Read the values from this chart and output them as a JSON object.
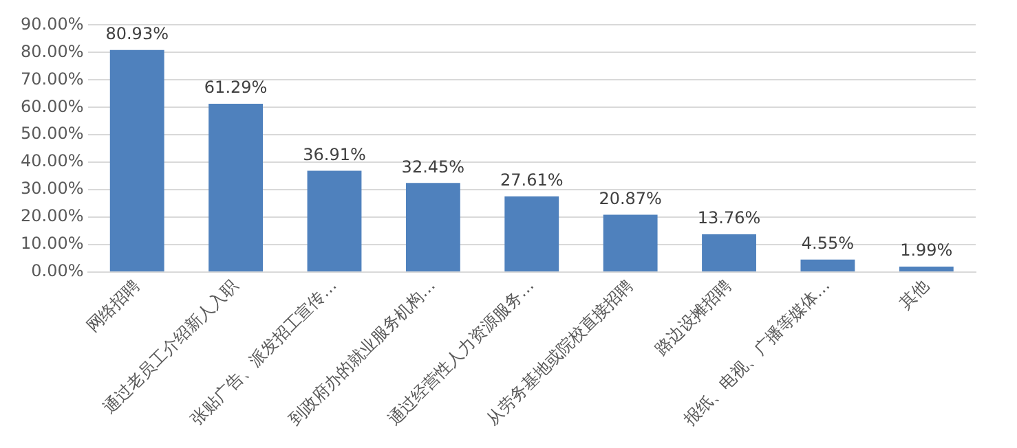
{
  "chart_data": {
    "type": "bar",
    "categories": [
      "网络招聘",
      "通过老员工介绍新人入职",
      "张贴广告、派发招工宣传…",
      "到政府办的就业服务机构…",
      "通过经营性人力资源服务…",
      "从劳务基地或院校直接招聘",
      "路边设摊招聘",
      "报纸、电视、广播等媒体…",
      "其他"
    ],
    "values": [
      80.93,
      61.29,
      36.91,
      32.45,
      27.61,
      20.87,
      13.76,
      4.55,
      1.99
    ],
    "value_labels": [
      "80.93%",
      "61.29%",
      "36.91%",
      "32.45%",
      "27.61%",
      "20.87%",
      "13.76%",
      "4.55%",
      "1.99%"
    ],
    "color": "#4f81bd",
    "ylim": [
      0,
      90
    ],
    "yticks": [
      {
        "value": 0,
        "label": "0.00%"
      },
      {
        "value": 10,
        "label": "10.00%"
      },
      {
        "value": 20,
        "label": "20.00%"
      },
      {
        "value": 30,
        "label": "30.00%"
      },
      {
        "value": 40,
        "label": "40.00%"
      },
      {
        "value": 50,
        "label": "50.00%"
      },
      {
        "value": 60,
        "label": "60.00%"
      },
      {
        "value": 70,
        "label": "70.00%"
      },
      {
        "value": 80,
        "label": "80.00%"
      },
      {
        "value": 90,
        "label": "90.00%"
      }
    ],
    "grid": "y",
    "legend": false
  }
}
